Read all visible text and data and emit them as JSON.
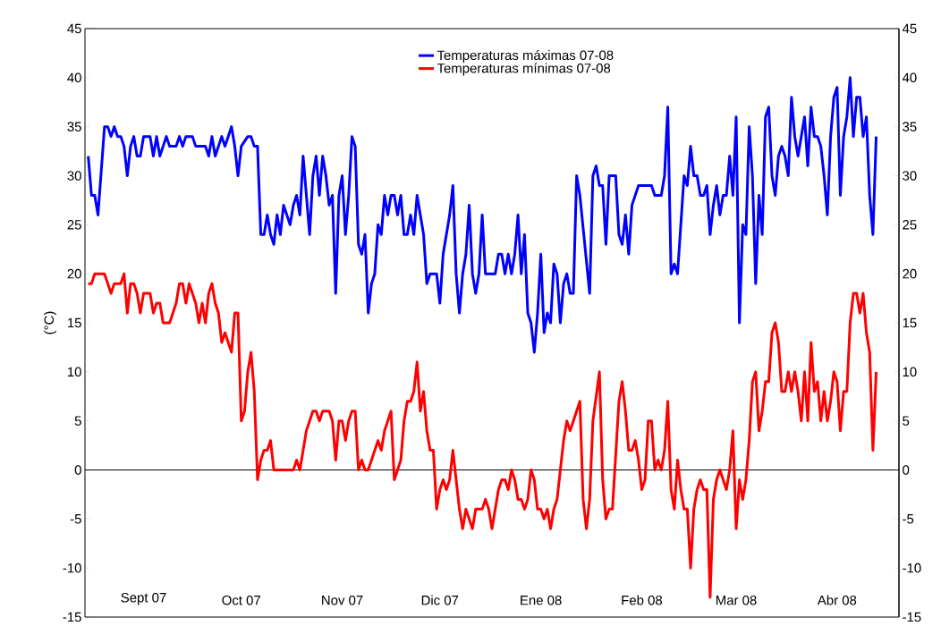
{
  "chart_data": {
    "type": "line",
    "ylabel": "(°C)",
    "xlim": [
      "2007-08-14",
      "2008-04-20"
    ],
    "xticks": [
      {
        "value": "2007-09-01",
        "label": "Sept 07"
      },
      {
        "value": "2007-10-01",
        "label": "Oct 07"
      },
      {
        "value": "2007-11-01",
        "label": "Nov 07"
      },
      {
        "value": "2007-12-01",
        "label": "Dic 07"
      },
      {
        "value": "2008-01-01",
        "label": "Ene 08"
      },
      {
        "value": "2008-02-01",
        "label": "Feb 08"
      },
      {
        "value": "2008-03-01",
        "label": "Mar 08"
      },
      {
        "value": "2008-04-01",
        "label": "Abr 08"
      }
    ],
    "ylim": [
      -15,
      45
    ],
    "yticks": [
      -15,
      -10,
      -5,
      0,
      5,
      10,
      15,
      20,
      25,
      30,
      35,
      40,
      45
    ],
    "y2lim": [
      -15,
      45
    ],
    "y2ticks": [
      -15,
      -10,
      -5,
      0,
      5,
      10,
      15,
      20,
      25,
      30,
      35,
      40,
      45
    ],
    "legend": "top",
    "ref_lines": [
      {
        "axis": "y",
        "value": 0,
        "color": "#000000"
      }
    ],
    "series": [
      {
        "name": "Temperaturas máximas 07-08",
        "color": "#0000ff",
        "x": [
          "2007-08-15",
          "2007-08-16",
          "2007-08-17",
          "2007-08-18",
          "2007-08-20",
          "2007-08-21",
          "2007-08-22",
          "2007-08-23",
          "2007-08-24",
          "2007-08-25",
          "2007-08-26",
          "2007-08-27",
          "2007-08-28",
          "2007-08-29",
          "2007-08-30",
          "2007-08-31",
          "2007-09-01",
          "2007-09-02",
          "2007-09-03",
          "2007-09-04",
          "2007-09-05",
          "2007-09-06",
          "2007-09-07",
          "2007-09-08",
          "2007-09-09",
          "2007-09-11",
          "2007-09-12",
          "2007-09-13",
          "2007-09-14",
          "2007-09-16",
          "2007-09-17",
          "2007-09-20",
          "2007-09-21",
          "2007-09-22",
          "2007-09-23",
          "2007-09-25",
          "2007-09-26",
          "2007-09-28",
          "2007-09-29",
          "2007-09-30",
          "2007-10-01",
          "2007-10-03",
          "2007-10-04",
          "2007-10-05",
          "2007-10-06",
          "2007-10-07",
          "2007-10-08",
          "2007-10-09",
          "2007-10-10",
          "2007-10-11",
          "2007-10-12",
          "2007-10-13",
          "2007-10-14",
          "2007-10-16",
          "2007-10-17",
          "2007-10-18",
          "2007-10-19",
          "2007-10-20",
          "2007-10-21",
          "2007-10-22",
          "2007-10-23",
          "2007-10-24",
          "2007-10-25",
          "2007-10-26",
          "2007-10-27",
          "2007-10-28",
          "2007-10-29",
          "2007-10-30",
          "2007-10-31",
          "2007-11-01",
          "2007-11-02",
          "2007-11-03",
          "2007-11-04",
          "2007-11-05",
          "2007-11-06",
          "2007-11-07",
          "2007-11-08",
          "2007-11-09",
          "2007-11-10",
          "2007-11-11",
          "2007-11-12",
          "2007-11-13",
          "2007-11-14",
          "2007-11-15",
          "2007-11-16",
          "2007-11-17",
          "2007-11-18",
          "2007-11-19",
          "2007-11-20",
          "2007-11-21",
          "2007-11-22",
          "2007-11-23",
          "2007-11-24",
          "2007-11-26",
          "2007-11-27",
          "2007-11-28",
          "2007-11-30",
          "2007-12-01",
          "2007-12-02",
          "2007-12-04",
          "2007-12-05",
          "2007-12-06",
          "2007-12-07",
          "2007-12-08",
          "2007-12-09",
          "2007-12-10",
          "2007-12-11",
          "2007-12-12",
          "2007-12-13",
          "2007-12-14",
          "2007-12-15",
          "2007-12-18",
          "2007-12-19",
          "2007-12-20",
          "2007-12-21",
          "2007-12-22",
          "2007-12-23",
          "2007-12-24",
          "2007-12-25",
          "2007-12-26",
          "2007-12-27",
          "2007-12-28",
          "2007-12-29",
          "2007-12-30",
          "2007-12-31",
          "2008-01-01",
          "2008-01-02",
          "2008-01-03",
          "2008-01-04",
          "2008-01-05",
          "2008-01-06",
          "2008-01-07",
          "2008-01-08",
          "2008-01-09",
          "2008-01-10",
          "2008-01-11",
          "2008-01-12",
          "2008-01-13",
          "2008-01-16",
          "2008-01-17",
          "2008-01-18",
          "2008-01-19",
          "2008-01-20",
          "2008-01-21",
          "2008-01-22",
          "2008-01-24",
          "2008-01-25",
          "2008-01-26",
          "2008-01-27",
          "2008-01-28",
          "2008-01-29",
          "2008-01-31",
          "2008-02-04",
          "2008-02-05",
          "2008-02-07",
          "2008-02-08",
          "2008-02-09",
          "2008-02-10",
          "2008-02-11",
          "2008-02-12",
          "2008-02-14",
          "2008-02-15",
          "2008-02-16",
          "2008-02-17",
          "2008-02-18",
          "2008-02-19",
          "2008-02-20",
          "2008-02-21",
          "2008-02-22",
          "2008-02-23",
          "2008-02-24",
          "2008-02-25",
          "2008-02-26",
          "2008-02-27",
          "2008-02-28",
          "2008-02-29",
          "2008-03-01",
          "2008-03-02",
          "2008-03-03",
          "2008-03-04",
          "2008-03-05",
          "2008-03-06",
          "2008-03-07",
          "2008-03-08",
          "2008-03-09",
          "2008-03-10",
          "2008-03-11",
          "2008-03-12",
          "2008-03-13",
          "2008-03-14",
          "2008-03-15",
          "2008-03-16",
          "2008-03-17",
          "2008-03-18",
          "2008-03-19",
          "2008-03-20",
          "2008-03-22",
          "2008-03-23",
          "2008-03-24",
          "2008-03-25",
          "2008-03-26",
          "2008-03-27",
          "2008-03-28",
          "2008-03-29",
          "2008-03-30",
          "2008-03-31",
          "2008-04-01",
          "2008-04-02",
          "2008-04-03",
          "2008-04-04",
          "2008-04-05",
          "2008-04-06",
          "2008-04-07",
          "2008-04-08",
          "2008-04-09",
          "2008-04-10",
          "2008-04-11",
          "2008-04-12",
          "2008-04-13"
        ],
        "values": [
          32,
          28,
          28,
          26,
          35,
          35,
          34,
          35,
          34,
          34,
          33,
          30,
          33,
          34,
          32,
          32,
          34,
          34,
          34,
          32,
          34,
          32,
          33,
          34,
          33,
          33,
          34,
          33,
          34,
          34,
          33,
          33,
          32,
          34,
          32,
          34,
          33,
          35,
          33,
          30,
          33,
          34,
          34,
          33,
          33,
          24,
          24,
          26,
          24,
          23,
          26,
          24,
          27,
          25,
          27,
          28,
          26,
          32,
          28,
          24,
          30,
          32,
          28,
          32,
          30,
          27,
          28,
          18,
          28,
          30,
          24,
          28,
          34,
          33,
          23,
          22,
          24,
          16,
          19,
          20,
          25,
          24,
          28,
          26,
          28,
          28,
          26,
          28,
          24,
          24,
          26,
          24,
          28,
          24,
          19,
          20,
          20,
          17,
          22,
          26,
          29,
          20,
          16,
          20,
          22,
          27,
          20,
          18,
          20,
          26,
          20,
          20,
          22,
          22,
          20,
          22,
          20,
          22,
          26,
          20,
          24,
          16,
          15,
          12,
          16,
          22,
          14,
          16,
          15,
          21,
          20,
          15,
          19,
          20,
          18,
          18,
          30,
          28,
          18,
          30,
          31,
          29,
          29,
          23,
          30,
          30,
          24,
          23,
          26,
          22,
          27,
          29,
          29,
          28,
          28,
          30,
          37,
          20,
          21,
          20,
          30,
          29,
          33,
          30,
          30,
          28,
          28,
          29,
          24,
          27,
          29,
          26,
          28,
          28,
          32,
          28,
          36,
          15,
          25,
          24,
          35,
          30,
          19,
          28,
          24,
          36,
          37,
          30,
          28,
          32,
          33,
          32,
          30,
          38,
          34,
          32,
          36,
          31,
          37,
          34,
          34,
          33,
          30,
          26,
          34,
          38,
          39,
          28,
          34,
          36,
          40,
          34,
          38,
          38,
          34,
          36,
          28,
          24,
          34
        ]
      },
      {
        "name": "Temperaturas mínimas 07-08",
        "color": "#ff0000",
        "x": [
          "2007-08-15",
          "2007-08-16",
          "2007-08-17",
          "2007-08-20",
          "2007-08-21",
          "2007-08-22",
          "2007-08-23",
          "2007-08-25",
          "2007-08-26",
          "2007-08-27",
          "2007-08-28",
          "2007-08-29",
          "2007-08-30",
          "2007-08-31",
          "2007-09-01",
          "2007-09-03",
          "2007-09-04",
          "2007-09-05",
          "2007-09-06",
          "2007-09-07",
          "2007-09-09",
          "2007-09-11",
          "2007-09-12",
          "2007-09-13",
          "2007-09-14",
          "2007-09-15",
          "2007-09-17",
          "2007-09-18",
          "2007-09-19",
          "2007-09-20",
          "2007-09-21",
          "2007-09-22",
          "2007-09-23",
          "2007-09-24",
          "2007-09-25",
          "2007-09-26",
          "2007-09-28",
          "2007-09-29",
          "2007-09-30",
          "2007-10-01",
          "2007-10-02",
          "2007-10-03",
          "2007-10-04",
          "2007-10-05",
          "2007-10-06",
          "2007-10-07",
          "2007-10-08",
          "2007-10-09",
          "2007-10-10",
          "2007-10-11",
          "2007-10-17",
          "2007-10-18",
          "2007-10-19",
          "2007-10-21",
          "2007-10-22",
          "2007-10-23",
          "2007-10-24",
          "2007-10-25",
          "2007-10-26",
          "2007-10-28",
          "2007-10-29",
          "2007-10-30",
          "2007-10-31",
          "2007-11-01",
          "2007-11-02",
          "2007-11-03",
          "2007-11-04",
          "2007-11-05",
          "2007-11-06",
          "2007-11-07",
          "2007-11-08",
          "2007-11-09",
          "2007-11-12",
          "2007-11-13",
          "2007-11-14",
          "2007-11-16",
          "2007-11-17",
          "2007-11-19",
          "2007-11-20",
          "2007-11-21",
          "2007-11-22",
          "2007-11-23",
          "2007-11-24",
          "2007-11-25",
          "2007-11-26",
          "2007-11-27",
          "2007-11-28",
          "2007-11-29",
          "2007-11-30",
          "2007-12-01",
          "2007-12-02",
          "2007-12-03",
          "2007-12-04",
          "2007-12-05",
          "2007-12-06",
          "2007-12-07",
          "2007-12-08",
          "2007-12-09",
          "2007-12-11",
          "2007-12-12",
          "2007-12-14",
          "2007-12-15",
          "2007-12-16",
          "2007-12-17",
          "2007-12-18",
          "2007-12-19",
          "2007-12-20",
          "2007-12-21",
          "2007-12-22",
          "2007-12-23",
          "2007-12-24",
          "2007-12-25",
          "2007-12-26",
          "2007-12-27",
          "2007-12-28",
          "2007-12-29",
          "2007-12-30",
          "2007-12-31",
          "2008-01-01",
          "2008-01-02",
          "2008-01-03",
          "2008-01-04",
          "2008-01-05",
          "2008-01-06",
          "2008-01-07",
          "2008-01-08",
          "2008-01-09",
          "2008-01-10",
          "2008-01-11",
          "2008-01-13",
          "2008-01-14",
          "2008-01-15",
          "2008-01-16",
          "2008-01-17",
          "2008-01-19",
          "2008-01-20",
          "2008-01-21",
          "2008-01-22",
          "2008-01-23",
          "2008-01-25",
          "2008-01-26",
          "2008-01-27",
          "2008-01-28",
          "2008-01-29",
          "2008-01-30",
          "2008-01-31",
          "2008-02-01",
          "2008-02-02",
          "2008-02-03",
          "2008-02-04",
          "2008-02-05",
          "2008-02-06",
          "2008-02-07",
          "2008-02-08",
          "2008-02-09",
          "2008-02-10",
          "2008-02-11",
          "2008-02-12",
          "2008-02-13",
          "2008-02-14",
          "2008-02-15",
          "2008-02-16",
          "2008-02-17",
          "2008-02-18",
          "2008-02-19",
          "2008-02-20",
          "2008-02-21",
          "2008-02-22",
          "2008-02-23",
          "2008-02-24",
          "2008-02-25",
          "2008-02-26",
          "2008-02-27",
          "2008-02-28",
          "2008-02-29",
          "2008-03-01",
          "2008-03-02",
          "2008-03-03",
          "2008-03-04",
          "2008-03-05",
          "2008-03-06",
          "2008-03-07",
          "2008-03-08",
          "2008-03-09",
          "2008-03-10",
          "2008-03-11",
          "2008-03-12",
          "2008-03-13",
          "2008-03-14",
          "2008-03-15",
          "2008-03-16",
          "2008-03-17",
          "2008-03-18",
          "2008-03-19",
          "2008-03-20",
          "2008-03-21",
          "2008-03-22",
          "2008-03-23",
          "2008-03-24",
          "2008-03-25",
          "2008-03-26",
          "2008-03-27",
          "2008-03-28",
          "2008-03-29",
          "2008-03-30",
          "2008-03-31",
          "2008-04-01",
          "2008-04-02",
          "2008-04-03",
          "2008-04-04",
          "2008-04-05",
          "2008-04-06",
          "2008-04-07",
          "2008-04-08",
          "2008-04-09",
          "2008-04-10",
          "2008-04-11",
          "2008-04-12",
          "2008-04-13"
        ],
        "values": [
          19,
          19,
          20,
          20,
          19,
          18,
          19,
          19,
          20,
          16,
          19,
          19,
          18,
          16,
          18,
          18,
          16,
          17,
          17,
          15,
          15,
          17,
          19,
          19,
          17,
          19,
          17,
          15,
          17,
          15,
          18,
          19,
          17,
          16,
          13,
          14,
          12,
          16,
          16,
          5,
          6,
          10,
          12,
          8,
          -1,
          1,
          2,
          2,
          3,
          0,
          0,
          1,
          0,
          4,
          5,
          6,
          6,
          5,
          6,
          6,
          5,
          1,
          5,
          5,
          3,
          5,
          6,
          6,
          0,
          1,
          0,
          0,
          3,
          2,
          4,
          6,
          -1,
          1,
          5,
          7,
          7,
          8,
          11,
          6,
          8,
          4,
          2,
          2,
          -4,
          -2,
          -1,
          -2,
          -1,
          2,
          -1,
          -4,
          -6,
          -4,
          -6,
          -4,
          -4,
          -3,
          -4,
          -6,
          -4,
          -2,
          -1,
          -1,
          -2,
          0,
          -1,
          -3,
          -3,
          -4,
          -3,
          0,
          -1,
          -4,
          -4,
          -5,
          -4,
          -6,
          -4,
          -3,
          0,
          3,
          5,
          4,
          5,
          7,
          -3,
          -6,
          -3,
          5,
          10,
          -1,
          -5,
          -4,
          -4,
          7,
          9,
          6,
          2,
          2,
          3,
          1,
          -2,
          -1,
          5,
          5,
          0,
          1,
          0,
          2,
          7,
          -2,
          -4,
          1,
          -2,
          -4,
          -4,
          -10,
          -4,
          -2,
          -1,
          -2,
          -2,
          -13,
          -3,
          -1,
          0,
          -1,
          -2,
          0,
          4,
          -6,
          -1,
          -3,
          -1,
          3,
          9,
          10,
          4,
          6,
          9,
          9,
          14,
          15,
          13,
          8,
          8,
          10,
          8,
          10,
          8,
          5,
          10,
          5,
          13,
          8,
          9,
          5,
          8,
          5,
          7,
          10,
          9,
          4,
          8,
          8,
          15,
          18,
          18,
          16,
          18,
          14,
          12,
          2,
          10
        ]
      }
    ]
  }
}
